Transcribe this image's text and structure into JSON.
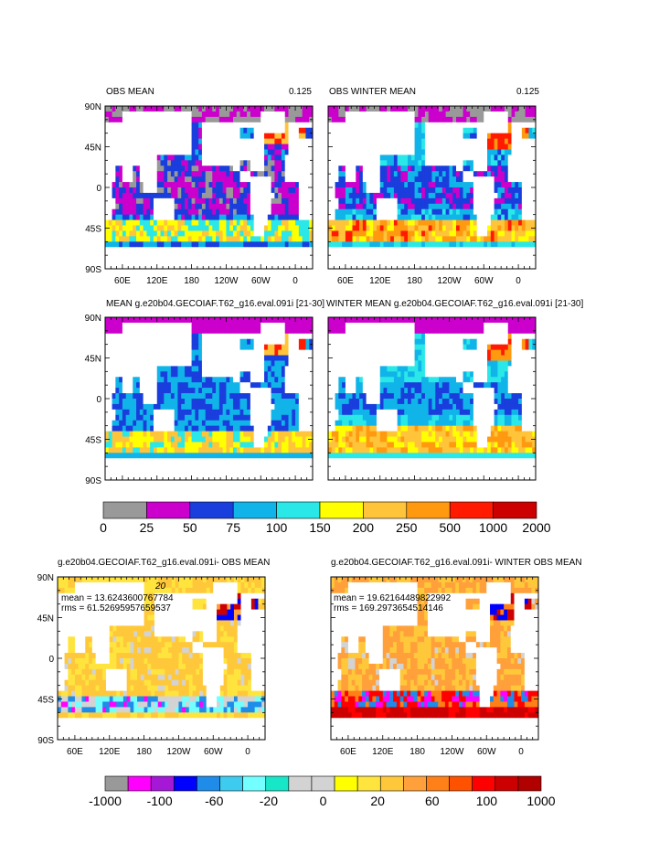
{
  "chart_data": [
    {
      "type": "heatmap",
      "id": "obs_mean",
      "title": "OBS MEAN",
      "right_label": "0.125",
      "x_ticks": [
        "60E",
        "120E",
        "180",
        "120W",
        "60W",
        "0"
      ],
      "y_ticks": [
        "90N",
        "45N",
        "0",
        "45S",
        "90S"
      ],
      "pattern": "base_mean"
    },
    {
      "type": "heatmap",
      "id": "obs_winter_mean",
      "title": "OBS WINTER MEAN",
      "right_label": "0.125",
      "x_ticks": [
        "60E",
        "120E",
        "180",
        "120W",
        "60W",
        "0"
      ],
      "y_ticks": [],
      "pattern": "base_winter"
    },
    {
      "type": "heatmap",
      "id": "model_mean",
      "title": "MEAN g.e20b04.GECOIAF.T62_g16.eval.091i [21-30]",
      "x_ticks": [],
      "y_ticks": [
        "90N",
        "45N",
        "0",
        "45S",
        "90S"
      ],
      "pattern": "model_mean"
    },
    {
      "type": "heatmap",
      "id": "model_winter_mean",
      "title": "WINTER MEAN g.e20b04.GECOIAF.T62_g16.eval.091i [21-30]",
      "x_ticks": [],
      "y_ticks": [],
      "pattern": "model_winter"
    },
    {
      "type": "heatmap",
      "id": "diff_mean",
      "title": "g.e20b04.GECOIAF.T62_g16.eval.091i- OBS MEAN",
      "contour_label": "20",
      "mean_text": "mean = 13.6243600767784",
      "rms_text": "rms = 61.52695957659537",
      "x_ticks": [
        "60E",
        "120E",
        "180",
        "120W",
        "60W",
        "0"
      ],
      "y_ticks": [
        "90N",
        "45N",
        "0",
        "45S",
        "90S"
      ],
      "pattern": "diff_mean"
    },
    {
      "type": "heatmap",
      "id": "diff_winter",
      "title": "g.e20b04.GECOIAF.T62_g16.eval.091i- WINTER OBS MEAN",
      "mean_text": "mean = 19.62164489822992",
      "rms_text": "rms = 169.2973654514146",
      "x_ticks": [
        "60E",
        "120E",
        "180",
        "120W",
        "60W",
        "0"
      ],
      "y_ticks": [],
      "pattern": "diff_winter"
    }
  ],
  "colorbars": [
    {
      "id": "top_colorbar",
      "colors": [
        "#999999",
        "#cc00cc",
        "#1a3ddd",
        "#10b4e8",
        "#2ae8e8",
        "#ffff00",
        "#ffc43a",
        "#ff9a10",
        "#ff1a00",
        "#cc0000"
      ],
      "labels": [
        "0",
        "25",
        "50",
        "75",
        "100",
        "150",
        "200",
        "250",
        "500",
        "1000",
        "2000"
      ]
    },
    {
      "id": "bottom_colorbar",
      "colors": [
        "#999999",
        "#ff00ff",
        "#a418d6",
        "#0000ff",
        "#1e8ce8",
        "#3ecbf0",
        "#73ffff",
        "#18e6c8",
        "#d3d3d3",
        "#d3d3d3",
        "#ffff00",
        "#ffe43e",
        "#ffc83a",
        "#ffa03a",
        "#ff8018",
        "#ff5200",
        "#ff0000",
        "#cc0000",
        "#b00000"
      ],
      "labels": [
        "-1000",
        "-100",
        "-60",
        "-20",
        "0",
        "20",
        "60",
        "100",
        "1000"
      ]
    }
  ]
}
